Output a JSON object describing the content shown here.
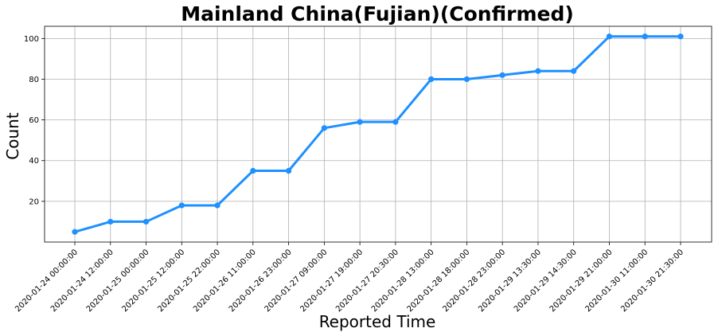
{
  "chart_data": {
    "type": "line",
    "title": "Mainland China(Fujian)(Confirmed)",
    "xlabel": "Reported Time",
    "ylabel": "Count",
    "categories": [
      "2020-01-24 00:00:00",
      "2020-01-24 12:00:00",
      "2020-01-25 00:00:00",
      "2020-01-25 12:00:00",
      "2020-01-25 22:00:00",
      "2020-01-26 11:00:00",
      "2020-01-26 23:00:00",
      "2020-01-27 09:00:00",
      "2020-01-27 19:00:00",
      "2020-01-27 20:30:00",
      "2020-01-28 13:00:00",
      "2020-01-28 18:00:00",
      "2020-01-28 23:00:00",
      "2020-01-29 13:30:00",
      "2020-01-29 14:30:00",
      "2020-01-29 21:00:00",
      "2020-01-30 11:00:00",
      "2020-01-30 21:30:00"
    ],
    "series": [
      {
        "values": [
          5,
          10,
          10,
          18,
          18,
          35,
          35,
          56,
          59,
          59,
          80,
          80,
          82,
          84,
          84,
          101,
          101,
          101
        ],
        "color": "#1e90ff"
      }
    ],
    "yticks": [
      20,
      40,
      60,
      80,
      100
    ],
    "ylim": [
      0,
      106
    ],
    "grid": true,
    "legend": "none"
  }
}
